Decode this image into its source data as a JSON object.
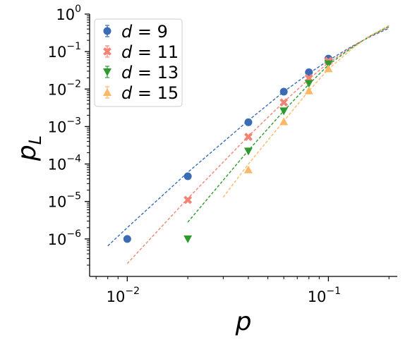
{
  "chart_data": {
    "type": "scatter",
    "xscale": "log",
    "yscale": "log",
    "xlim": [
      0.0065,
      0.22
    ],
    "ylim": [
      1e-07,
      1.0
    ],
    "xlabel_base": "p",
    "ylabel_base": "p",
    "ylabel_sub": "L",
    "xticks": [
      {
        "value": 0.01,
        "base": "10",
        "exp": "−2"
      },
      {
        "value": 0.1,
        "base": "10",
        "exp": "−1"
      }
    ],
    "yticks": [
      {
        "value": 1e-06,
        "base": "10",
        "exp": "−6"
      },
      {
        "value": 1e-05,
        "base": "10",
        "exp": "−5"
      },
      {
        "value": 0.0001,
        "base": "10",
        "exp": "−4"
      },
      {
        "value": 0.001,
        "base": "10",
        "exp": "−3"
      },
      {
        "value": 0.01,
        "base": "10",
        "exp": "−2"
      },
      {
        "value": 0.1,
        "base": "10",
        "exp": "−1"
      },
      {
        "value": 1,
        "base": "10",
        "exp": "0"
      }
    ],
    "legend_position": "top-left",
    "series": [
      {
        "name": "d = 9",
        "d": "9",
        "color": "#3b6bb5",
        "marker": "circle",
        "x": [
          0.01,
          0.02,
          0.04,
          0.06,
          0.08,
          0.1
        ],
        "y": [
          1e-06,
          4.7e-05,
          0.0013,
          0.0085,
          0.028,
          0.065
        ],
        "fit_x": [
          0.008,
          0.01,
          0.02,
          0.04,
          0.06,
          0.08,
          0.1,
          0.13,
          0.16,
          0.2
        ],
        "fit_y": [
          6.5e-07,
          2e-06,
          6e-05,
          0.00145,
          0.0085,
          0.026,
          0.058,
          0.135,
          0.245,
          0.42
        ]
      },
      {
        "name": "d = 11",
        "d": "11",
        "color": "#f28475",
        "marker": "x",
        "x": [
          0.02,
          0.04,
          0.06,
          0.08,
          0.1
        ],
        "y": [
          1.1e-05,
          0.00053,
          0.0044,
          0.0195,
          0.056
        ],
        "fit_x": [
          0.01,
          0.02,
          0.04,
          0.06,
          0.08,
          0.1,
          0.13,
          0.16,
          0.2
        ],
        "fit_y": [
          2.2e-07,
          1.2e-05,
          0.00055,
          0.0045,
          0.0185,
          0.05,
          0.13,
          0.25,
          0.45
        ]
      },
      {
        "name": "d = 13",
        "d": "13",
        "color": "#2e9a2e",
        "marker": "triangle-down",
        "x": [
          0.02,
          0.04,
          0.06,
          0.08,
          0.1
        ],
        "y": [
          1e-06,
          0.00022,
          0.0026,
          0.014,
          0.047
        ],
        "fit_x": [
          0.02,
          0.04,
          0.06,
          0.08,
          0.1,
          0.13,
          0.16,
          0.2
        ],
        "fit_y": [
          2.8e-06,
          0.00023,
          0.0026,
          0.0135,
          0.044,
          0.125,
          0.255,
          0.47
        ]
      },
      {
        "name": "d = 15",
        "d": "15",
        "color": "#fbb868",
        "marker": "triangle-up",
        "x": [
          0.04,
          0.06,
          0.08,
          0.1
        ],
        "y": [
          7e-05,
          0.00135,
          0.009,
          0.035
        ],
        "fit_x": [
          0.03,
          0.04,
          0.06,
          0.08,
          0.1,
          0.13,
          0.16,
          0.2
        ],
        "fit_y": [
          1.3e-05,
          0.0001,
          0.0014,
          0.009,
          0.034,
          0.115,
          0.26,
          0.5
        ]
      }
    ]
  }
}
